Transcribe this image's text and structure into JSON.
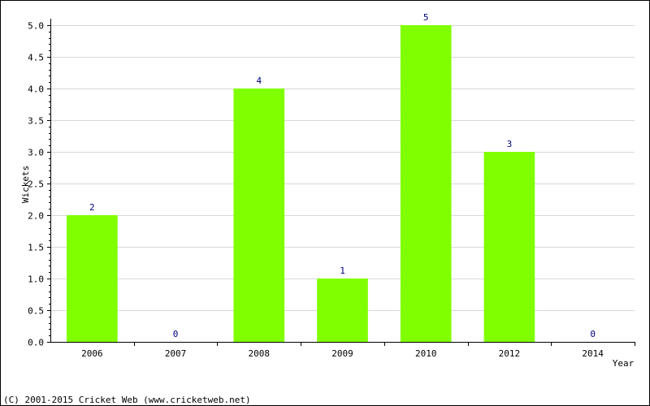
{
  "chart_data": {
    "type": "bar",
    "categories": [
      "2006",
      "2007",
      "2008",
      "2009",
      "2010",
      "2012",
      "2014"
    ],
    "values": [
      2,
      0,
      4,
      1,
      5,
      3,
      0
    ],
    "data_labels": [
      "2",
      "0",
      "4",
      "1",
      "5",
      "3",
      "0"
    ],
    "title": "",
    "xlabel": "Year",
    "ylabel": "Wickets",
    "ylim": [
      0,
      5
    ],
    "yticks": [
      "0.0",
      "0.5",
      "1.0",
      "1.5",
      "2.0",
      "2.5",
      "3.0",
      "3.5",
      "4.0",
      "4.5",
      "5.0"
    ],
    "grid": true,
    "bar_color": "#80ff00",
    "label_color": "#000080",
    "grid_color": "#d8d8d8"
  },
  "footer": {
    "copyright": "(C) 2001-2015 Cricket Web (www.cricketweb.net)"
  }
}
